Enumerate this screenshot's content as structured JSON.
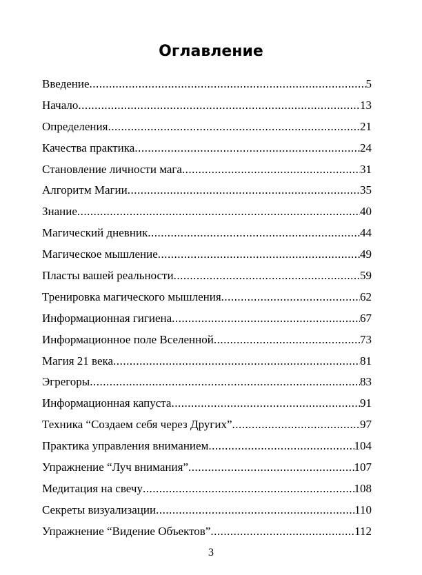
{
  "title": "Оглавление",
  "entries": [
    {
      "title": "Введение",
      "page": "5"
    },
    {
      "title": "Начало",
      "page": "13"
    },
    {
      "title": "Определения ",
      "page": "21"
    },
    {
      "title": "Качества практика",
      "page": "24"
    },
    {
      "title": "Становление личности мага",
      "page": "31"
    },
    {
      "title": "Алгоритм Магии",
      "page": "35"
    },
    {
      "title": "Знание ",
      "page": "40"
    },
    {
      "title": "Магический дневник",
      "page": "44"
    },
    {
      "title": "Магическое мышление ",
      "page": "49"
    },
    {
      "title": "Пласты вашей реальности",
      "page": "59"
    },
    {
      "title": "Тренировка магического мышления",
      "page": "62"
    },
    {
      "title": "Информационная гигиена ",
      "page": "67"
    },
    {
      "title": "Информационное поле Вселенной",
      "page": "73"
    },
    {
      "title": "Магия 21 века",
      "page": "81"
    },
    {
      "title": "Эгрегоры",
      "page": "83"
    },
    {
      "title": "Информационная капуста ",
      "page": "91"
    },
    {
      "title": "Техника “Создаем себя через Других” ",
      "page": "97"
    },
    {
      "title": "Практика управления вниманием ",
      "page": " 104"
    },
    {
      "title": "Упражнение “Луч внимания” ",
      "page": " 107"
    },
    {
      "title": "Медитация на свечу ",
      "page": " 108"
    },
    {
      "title": "Секреты визуализации",
      "page": " 110"
    },
    {
      "title": "Упражнение “Видение Объектов” ",
      "page": " 112"
    }
  ],
  "page_number": "3"
}
